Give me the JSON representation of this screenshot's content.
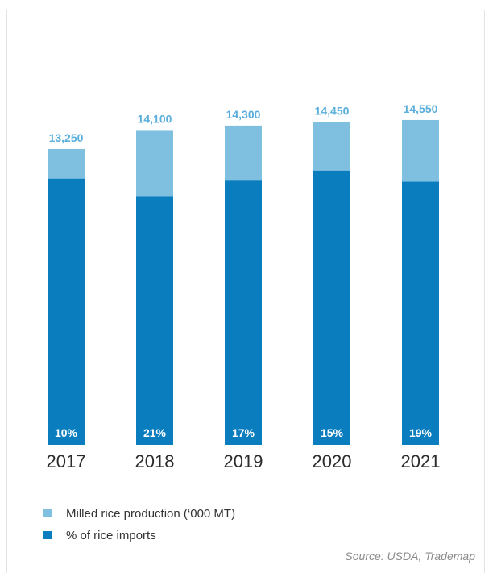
{
  "chart_data": {
    "type": "bar",
    "stacked": true,
    "categories": [
      "2017",
      "2018",
      "2019",
      "2020",
      "2021"
    ],
    "totals": [
      13250,
      14100,
      14300,
      14450,
      14550
    ],
    "total_labels": [
      "13,250",
      "14,100",
      "14,300",
      "14,450",
      "14,550"
    ],
    "import_pct": [
      10,
      21,
      17,
      15,
      19
    ],
    "import_pct_labels": [
      "10%",
      "21%",
      "17%",
      "15%",
      "19%"
    ],
    "series": [
      {
        "name": "Milled rice production (‘000 MT)",
        "color": "#7fbfe0"
      },
      {
        "name": "% of rice imports",
        "color": "#0a7dbf"
      }
    ],
    "legend_position": "bottom-left",
    "grid": false
  },
  "source": "Source: USDA, Trademap"
}
